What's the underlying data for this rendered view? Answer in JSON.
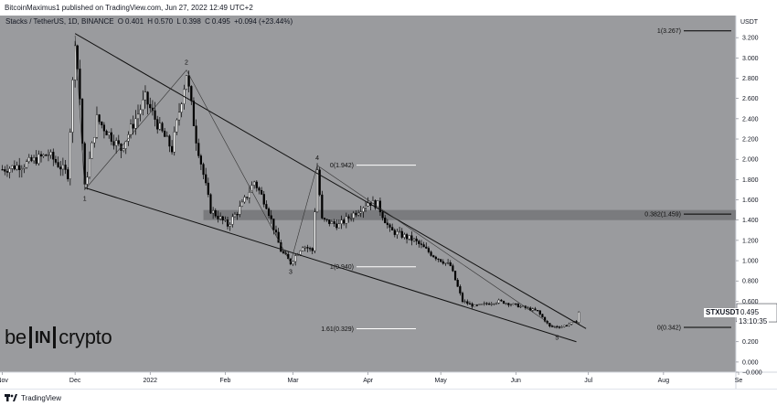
{
  "header": {
    "publisher_line": "BitcoinMaximus1 published on TradingView.com, Jun 27, 2022 12:49 UTC+2"
  },
  "legend": {
    "symbol": "Stacks / TetherUS, 1D, BINANCE",
    "o_label": "O",
    "o_value": "0.401",
    "h_label": "H",
    "h_value": "0.570",
    "l_label": "L",
    "l_value": "0.398",
    "c_label": "C",
    "c_value": "0.495",
    "change": "+0.094 (+23.44%)"
  },
  "footer": {
    "brand": "TradingView"
  },
  "logo": {
    "left": "be",
    "middle": "IN",
    "right": "crypto"
  },
  "price_tags": {
    "symbol": "STXUSDT",
    "price": "0.495",
    "countdown": "13:10:35"
  },
  "colors": {
    "background": "#9a9b9e",
    "candles": "#000000",
    "support_zone": "#6f7073",
    "accent_line": "#ffffff"
  },
  "chart_data": {
    "type": "candlestick",
    "y_axis_unit": "USDT",
    "ylim": [
      -0.1,
      3.4
    ],
    "y_ticks": [
      "3.200",
      "3.000",
      "2.800",
      "2.600",
      "2.400",
      "2.200",
      "2.000",
      "1.800",
      "1.600",
      "1.400",
      "1.200",
      "1.000",
      "0.800",
      "0.600",
      "0.400",
      "0.200",
      "0.000",
      "−0.000"
    ],
    "x_tick_labels": [
      "Nov",
      "Dec",
      "2022",
      "Feb",
      "Mar",
      "Apr",
      "May",
      "Jun",
      "Jul",
      "Aug",
      "Se"
    ],
    "x_tick_dates": [
      "2021-11-01",
      "2021-12-01",
      "2022-01-01",
      "2022-02-01",
      "2022-03-01",
      "2022-04-01",
      "2022-05-01",
      "2022-06-01",
      "2022-07-01",
      "2022-08-01",
      "2022-09-01"
    ],
    "price_path": [
      [
        "2021-11-01",
        1.9
      ],
      [
        "2021-11-10",
        1.95
      ],
      [
        "2021-11-20",
        2.05
      ],
      [
        "2021-11-28",
        1.85
      ],
      [
        "2021-12-01",
        3.2
      ],
      [
        "2021-12-03",
        2.6
      ],
      [
        "2021-12-05",
        1.72
      ],
      [
        "2021-12-10",
        2.4
      ],
      [
        "2021-12-20",
        2.1
      ],
      [
        "2021-12-30",
        2.6
      ],
      [
        "2022-01-05",
        2.3
      ],
      [
        "2022-01-10",
        2.1
      ],
      [
        "2022-01-16",
        2.85
      ],
      [
        "2022-01-20",
        2.2
      ],
      [
        "2022-01-26",
        1.5
      ],
      [
        "2022-02-02",
        1.35
      ],
      [
        "2022-02-08",
        1.55
      ],
      [
        "2022-02-13",
        1.78
      ],
      [
        "2022-02-18",
        1.55
      ],
      [
        "2022-02-24",
        1.1
      ],
      [
        "2022-02-28",
        0.98
      ],
      [
        "2022-03-05",
        1.15
      ],
      [
        "2022-03-09",
        1.1
      ],
      [
        "2022-03-11",
        1.9
      ],
      [
        "2022-03-13",
        1.4
      ],
      [
        "2022-03-20",
        1.35
      ],
      [
        "2022-03-28",
        1.5
      ],
      [
        "2022-04-01",
        1.58
      ],
      [
        "2022-04-05",
        1.55
      ],
      [
        "2022-04-10",
        1.3
      ],
      [
        "2022-04-20",
        1.2
      ],
      [
        "2022-04-28",
        1.05
      ],
      [
        "2022-05-05",
        0.95
      ],
      [
        "2022-05-10",
        0.6
      ],
      [
        "2022-05-15",
        0.55
      ],
      [
        "2022-05-25",
        0.6
      ],
      [
        "2022-06-01",
        0.56
      ],
      [
        "2022-06-10",
        0.5
      ],
      [
        "2022-06-15",
        0.35
      ],
      [
        "2022-06-20",
        0.35
      ],
      [
        "2022-06-26",
        0.4
      ],
      [
        "2022-06-27",
        0.495
      ]
    ],
    "support_zone": [
      1.4,
      1.5
    ],
    "fib_levels_top": [
      {
        "label": "1(3.267)",
        "value": 3.267
      },
      {
        "label": "0.382(1.459)",
        "value": 1.459
      },
      {
        "label": "0(0.342)",
        "value": 0.342
      }
    ],
    "fib_levels_mid": [
      {
        "label": "0(1.942)",
        "value": 1.942
      },
      {
        "label": "1(0.940)",
        "value": 0.94
      },
      {
        "label": "1.61(0.329)",
        "value": 0.329
      }
    ],
    "wave_labels": [
      {
        "label": "1",
        "date": "2021-12-05",
        "price": 1.7
      },
      {
        "label": "2",
        "date": "2022-01-16",
        "price": 2.88
      },
      {
        "label": "3",
        "date": "2022-02-28",
        "price": 0.98
      },
      {
        "label": "4",
        "date": "2022-03-11",
        "price": 1.94
      },
      {
        "label": "5",
        "date": "2022-06-18",
        "price": 0.33
      }
    ],
    "wedge_upper": [
      [
        "2021-12-01",
        3.24
      ],
      [
        "2022-06-30",
        0.33
      ]
    ],
    "wedge_lower": [
      [
        "2021-12-05",
        1.72
      ],
      [
        "2022-06-26",
        0.2
      ]
    ]
  }
}
